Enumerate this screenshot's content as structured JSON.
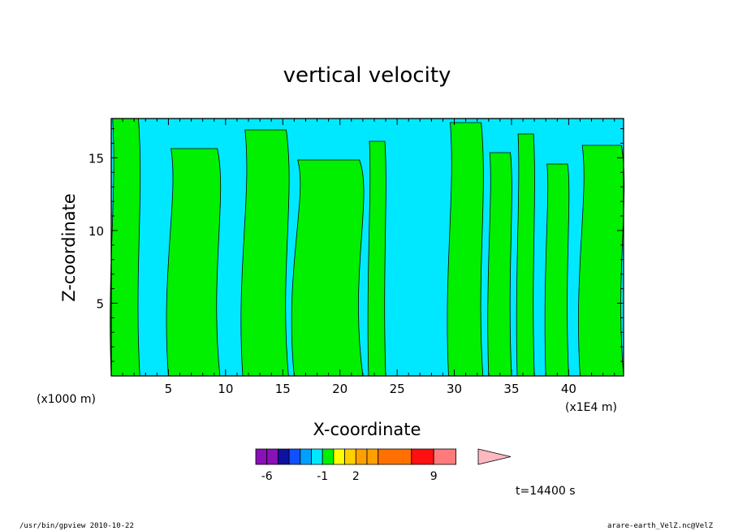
{
  "chart_data": {
    "type": "heatmap",
    "title": "vertical velocity",
    "xlabel": "X-coordinate",
    "ylabel": "Z-coordinate",
    "x_unit_note": "(x1E4 m)",
    "y_unit_note": "(x1000 m)",
    "xlim": [
      0,
      44.8
    ],
    "ylim": [
      0,
      17.7
    ],
    "x_ticks": [
      "5",
      "10",
      "15",
      "20",
      "25",
      "30",
      "35",
      "40"
    ],
    "x_tick_values": [
      5,
      10,
      15,
      20,
      25,
      30,
      35,
      40
    ],
    "y_ticks": [
      "5",
      "10",
      "15"
    ],
    "y_tick_values": [
      5,
      10,
      15
    ],
    "time_label": "t=14400 s",
    "colorbar": {
      "labels": [
        {
          "text": "-6",
          "level": -6
        },
        {
          "text": "-1",
          "level": -1
        },
        {
          "text": "2",
          "level": 2
        },
        {
          "text": "9",
          "level": 9
        }
      ],
      "levels": [
        -7,
        -6,
        -5,
        -4,
        -3,
        -2,
        -1,
        0,
        1,
        2,
        3,
        4,
        7,
        9,
        11,
        13
      ],
      "colors": [
        "#8a10b8",
        "#8a10b8",
        "#1010a0",
        "#1050ff",
        "#00a0ff",
        "#00e8ff",
        "#00f000",
        "#ffff00",
        "#ffd000",
        "#ffa000",
        "#ffa000",
        "#ff7000",
        "#ff1010",
        "#ff7a7a"
      ],
      "extend_color": "#ffb8c0"
    },
    "field_colors": {
      "negative_weak": "#00e8ff",
      "positive_weak": "#00f000",
      "plot_background": "#00e8ff"
    },
    "green_regions_x_ranges": [
      [
        0,
        2.5
      ],
      [
        5,
        9.5
      ],
      [
        11.5,
        15.5
      ],
      [
        16,
        22
      ],
      [
        22.5,
        24
      ],
      [
        29.5,
        32.5
      ],
      [
        33,
        35
      ],
      [
        35.5,
        37
      ],
      [
        38,
        40
      ],
      [
        41,
        44.8
      ]
    ]
  },
  "footer": {
    "left": "/usr/bin/gpview  2010-10-22",
    "right": "arare-earth_VelZ.nc@VelZ"
  }
}
